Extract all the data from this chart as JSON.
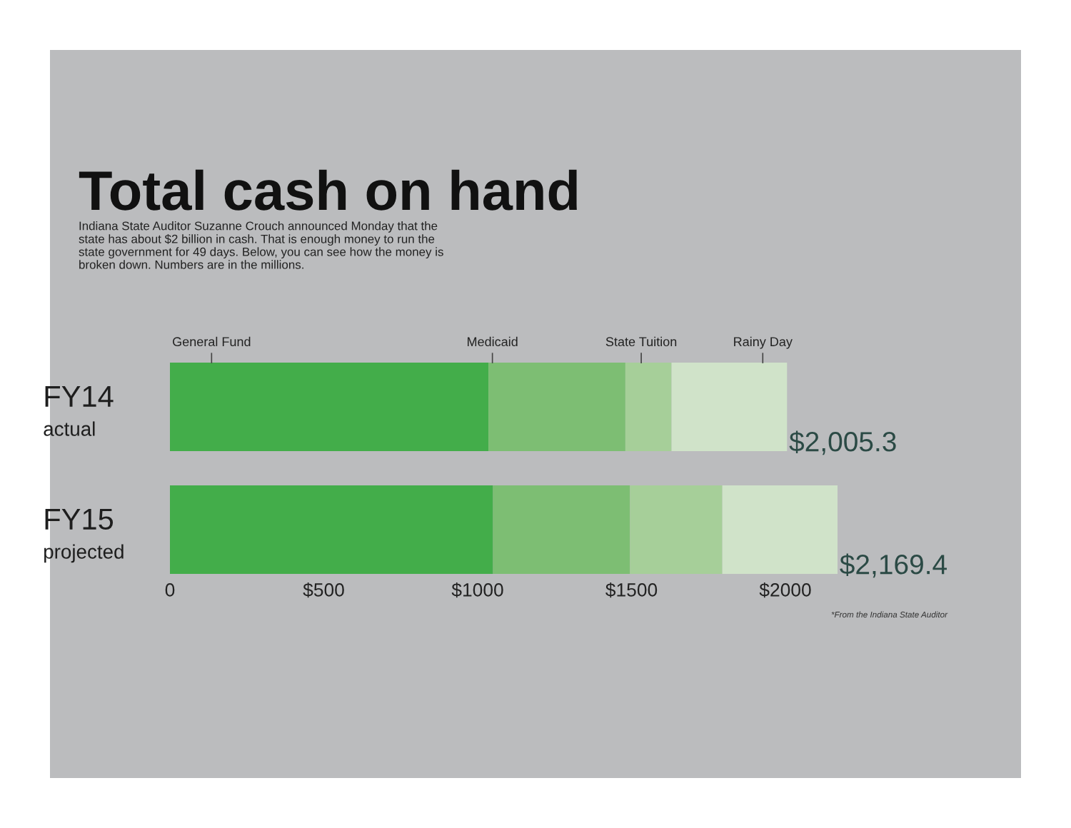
{
  "chart_data": {
    "type": "bar",
    "orientation": "horizontal",
    "stacked": true,
    "title": "Total cash on hand",
    "subtitle": "Indiana State Auditor Suzanne Crouch announced Monday that the\nstate has about $2 billion in cash. That is enough money to run the\nstate government for 49 days. Below, you can see how the money is\nbroken down. Numbers are in the millions.",
    "categories": [
      "FY14\nactual",
      "FY15\nprojected"
    ],
    "series": [
      {
        "name": "General Fund",
        "color": "#43ad4a",
        "values": [
          1035,
          1050
        ]
      },
      {
        "name": "Medicaid",
        "color": "#7dbe73",
        "values": [
          445,
          445
        ]
      },
      {
        "name": "State Tuition",
        "color": "#a6cf99",
        "values": [
          150,
          300
        ]
      },
      {
        "name": "Rainy Day",
        "color": "#d0e3c9",
        "values": [
          375.3,
          374.4
        ]
      }
    ],
    "totals": [
      "$2,005.3",
      "$2,169.4"
    ],
    "xlim": [
      0,
      2169.4
    ],
    "xticks": [
      0,
      {
        "value": 500,
        "label": "$500"
      },
      {
        "value": 1000,
        "label": "$1000"
      },
      {
        "value": 1500,
        "label": "$1500"
      },
      {
        "value": 2000,
        "label": "$2000"
      }
    ],
    "annotations": [
      "*From the Indiana State Auditor"
    ]
  }
}
